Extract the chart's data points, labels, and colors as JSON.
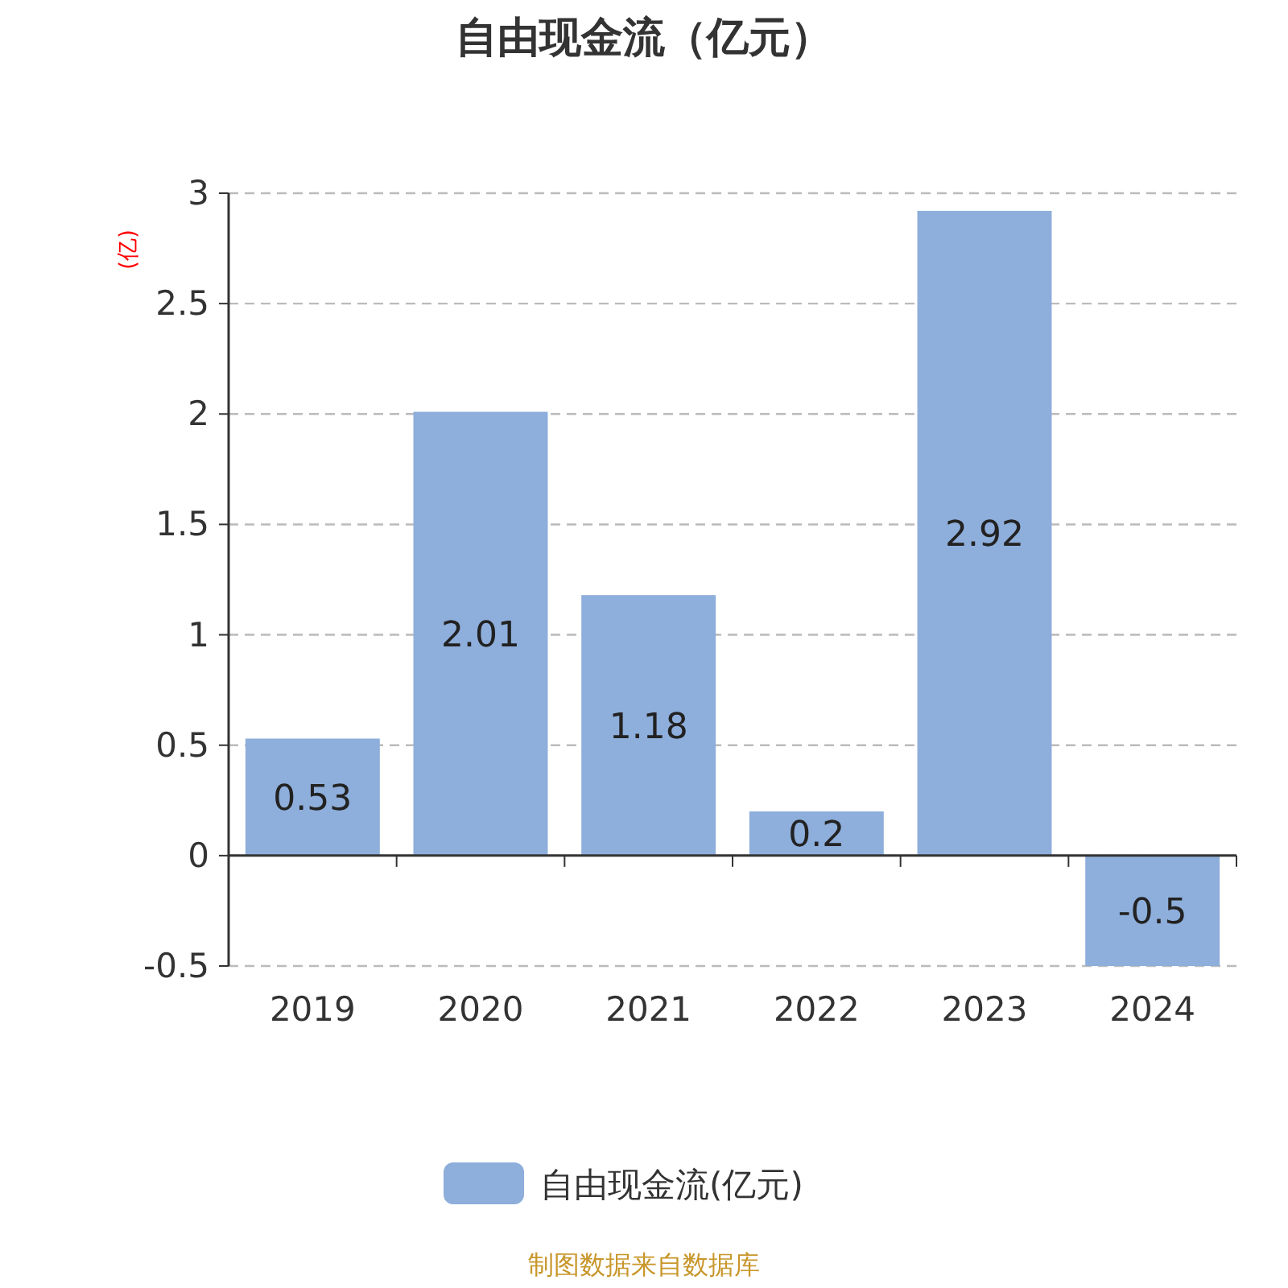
{
  "chart_data": {
    "type": "bar",
    "title": "自由现金流（亿元）",
    "ylabel": "(亿)",
    "categories": [
      "2019",
      "2020",
      "2021",
      "2022",
      "2023",
      "2024"
    ],
    "series": [
      {
        "name": "自由现金流(亿元)",
        "color": "#8eaedb",
        "values": [
          0.53,
          2.01,
          1.18,
          0.2,
          2.92,
          -0.5
        ]
      }
    ],
    "ylim": [
      -0.5,
      3
    ],
    "yticks": [
      -0.5,
      0,
      0.5,
      1,
      1.5,
      2,
      2.5,
      3
    ],
    "grid": "y",
    "legend": "bottom",
    "data_labels": true,
    "annotations": [
      "制图数据来自数据库"
    ]
  }
}
